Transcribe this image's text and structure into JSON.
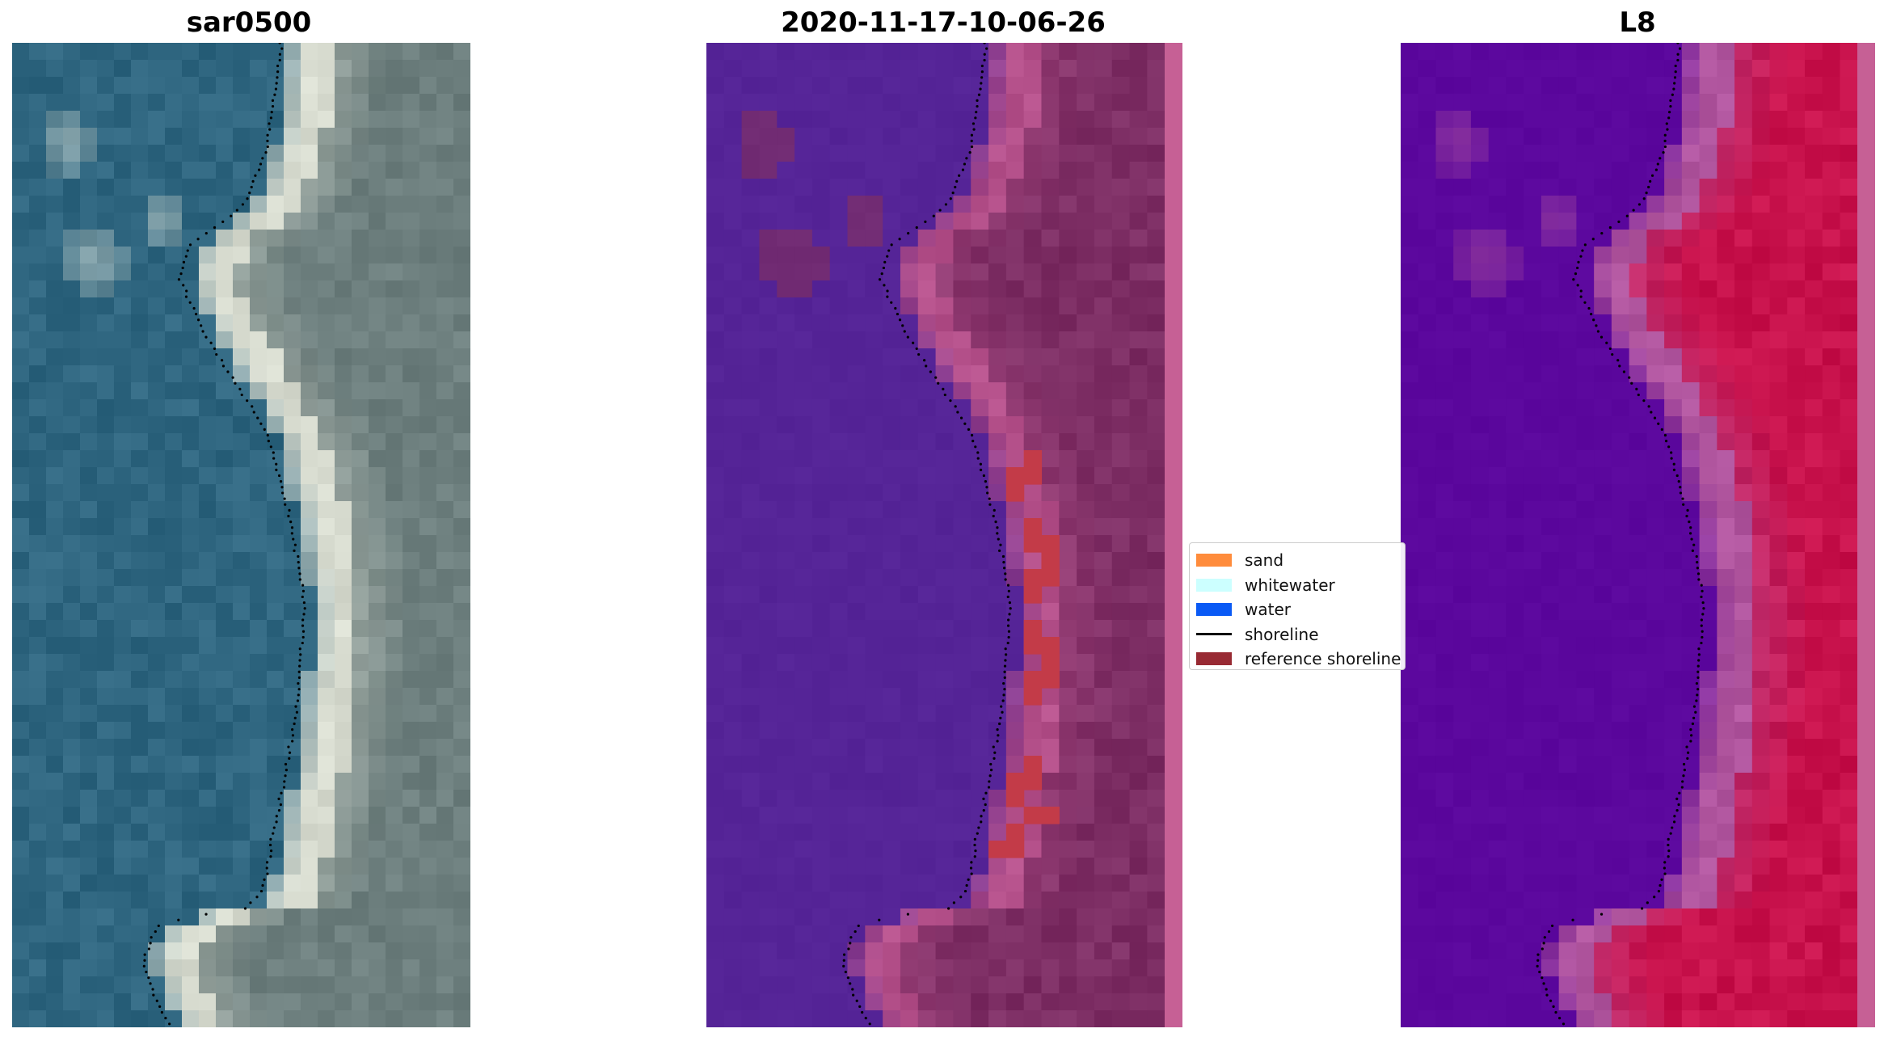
{
  "figure": {
    "titles": {
      "left": "sar0500",
      "middle": "2020-11-17-10-06-26",
      "right": "L8"
    }
  },
  "legend": {
    "items": [
      {
        "label": "sand",
        "kind": "patch",
        "color": "#ff8c3c"
      },
      {
        "label": "whitewater",
        "kind": "patch",
        "color": "#ccffff"
      },
      {
        "label": "water",
        "kind": "patch",
        "color": "#0a5af5"
      },
      {
        "label": "shoreline",
        "kind": "line",
        "color": "#000000"
      },
      {
        "label": "reference shoreline",
        "kind": "patch",
        "color": "#982a33"
      }
    ]
  },
  "colors": {
    "rgb_water": "#2f6680",
    "rgb_land": "#6d7f7e",
    "rgb_beach": "#d8dcd0",
    "class_water": "#552497",
    "class_land": "#7d2e64",
    "class_beach": "#b4508a",
    "class_sand_overlap": "#c33b48",
    "index_water": "#5b079d",
    "index_land": "#c8124c",
    "index_beach": "#b0559e",
    "right_edge": "#c66095",
    "shoreline": "#000000"
  }
}
